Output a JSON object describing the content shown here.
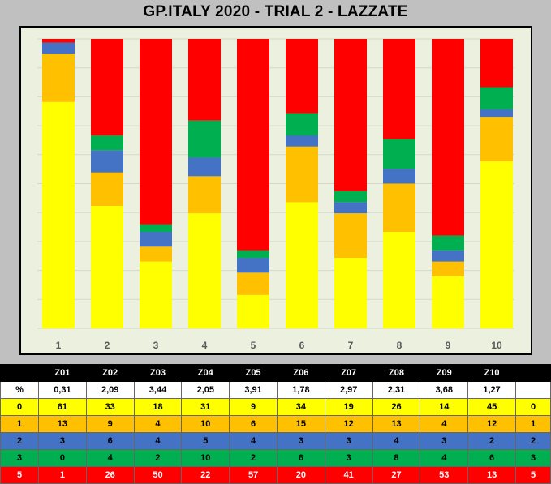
{
  "title": "GP.ITALY 2020 - TRIAL 2 - LAZZATE",
  "colors": {
    "0": "#ffff00",
    "1": "#ffc000",
    "2": "#4472c4",
    "3": "#00b050",
    "5": "#ff0000"
  },
  "chart_data": {
    "type": "bar",
    "stacked": true,
    "categories": [
      "1",
      "2",
      "3",
      "4",
      "5",
      "6",
      "7",
      "8",
      "9",
      "10"
    ],
    "series": [
      {
        "name": "0",
        "values": [
          61,
          33,
          18,
          31,
          9,
          34,
          19,
          26,
          14,
          45
        ]
      },
      {
        "name": "1",
        "values": [
          13,
          9,
          4,
          10,
          6,
          15,
          12,
          13,
          4,
          12
        ]
      },
      {
        "name": "2",
        "values": [
          3,
          6,
          4,
          5,
          4,
          3,
          3,
          4,
          3,
          2
        ]
      },
      {
        "name": "3",
        "values": [
          0,
          4,
          2,
          10,
          2,
          6,
          3,
          8,
          4,
          6
        ]
      },
      {
        "name": "5",
        "values": [
          1,
          26,
          50,
          22,
          57,
          20,
          41,
          27,
          53,
          13
        ]
      }
    ],
    "grid": true
  },
  "table": {
    "header": [
      "",
      "Z01",
      "Z02",
      "Z03",
      "Z04",
      "Z05",
      "Z06",
      "Z07",
      "Z08",
      "Z09",
      "Z10",
      ""
    ],
    "rows": [
      {
        "label": "%",
        "cells": [
          "0,31",
          "2,09",
          "3,44",
          "2,05",
          "3,91",
          "1,78",
          "2,97",
          "2,31",
          "3,68",
          "1,27"
        ],
        "end": ""
      },
      {
        "label": "0",
        "cells": [
          "61",
          "33",
          "18",
          "31",
          "9",
          "34",
          "19",
          "26",
          "14",
          "45"
        ],
        "end": "0"
      },
      {
        "label": "1",
        "cells": [
          "13",
          "9",
          "4",
          "10",
          "6",
          "15",
          "12",
          "13",
          "4",
          "12"
        ],
        "end": "1"
      },
      {
        "label": "2",
        "cells": [
          "3",
          "6",
          "4",
          "5",
          "4",
          "3",
          "3",
          "4",
          "3",
          "2"
        ],
        "end": "2"
      },
      {
        "label": "3",
        "cells": [
          "0",
          "4",
          "2",
          "10",
          "2",
          "6",
          "3",
          "8",
          "4",
          "6"
        ],
        "end": "3"
      },
      {
        "label": "5",
        "cells": [
          "1",
          "26",
          "50",
          "22",
          "57",
          "20",
          "41",
          "27",
          "53",
          "13"
        ],
        "end": "5"
      }
    ]
  }
}
